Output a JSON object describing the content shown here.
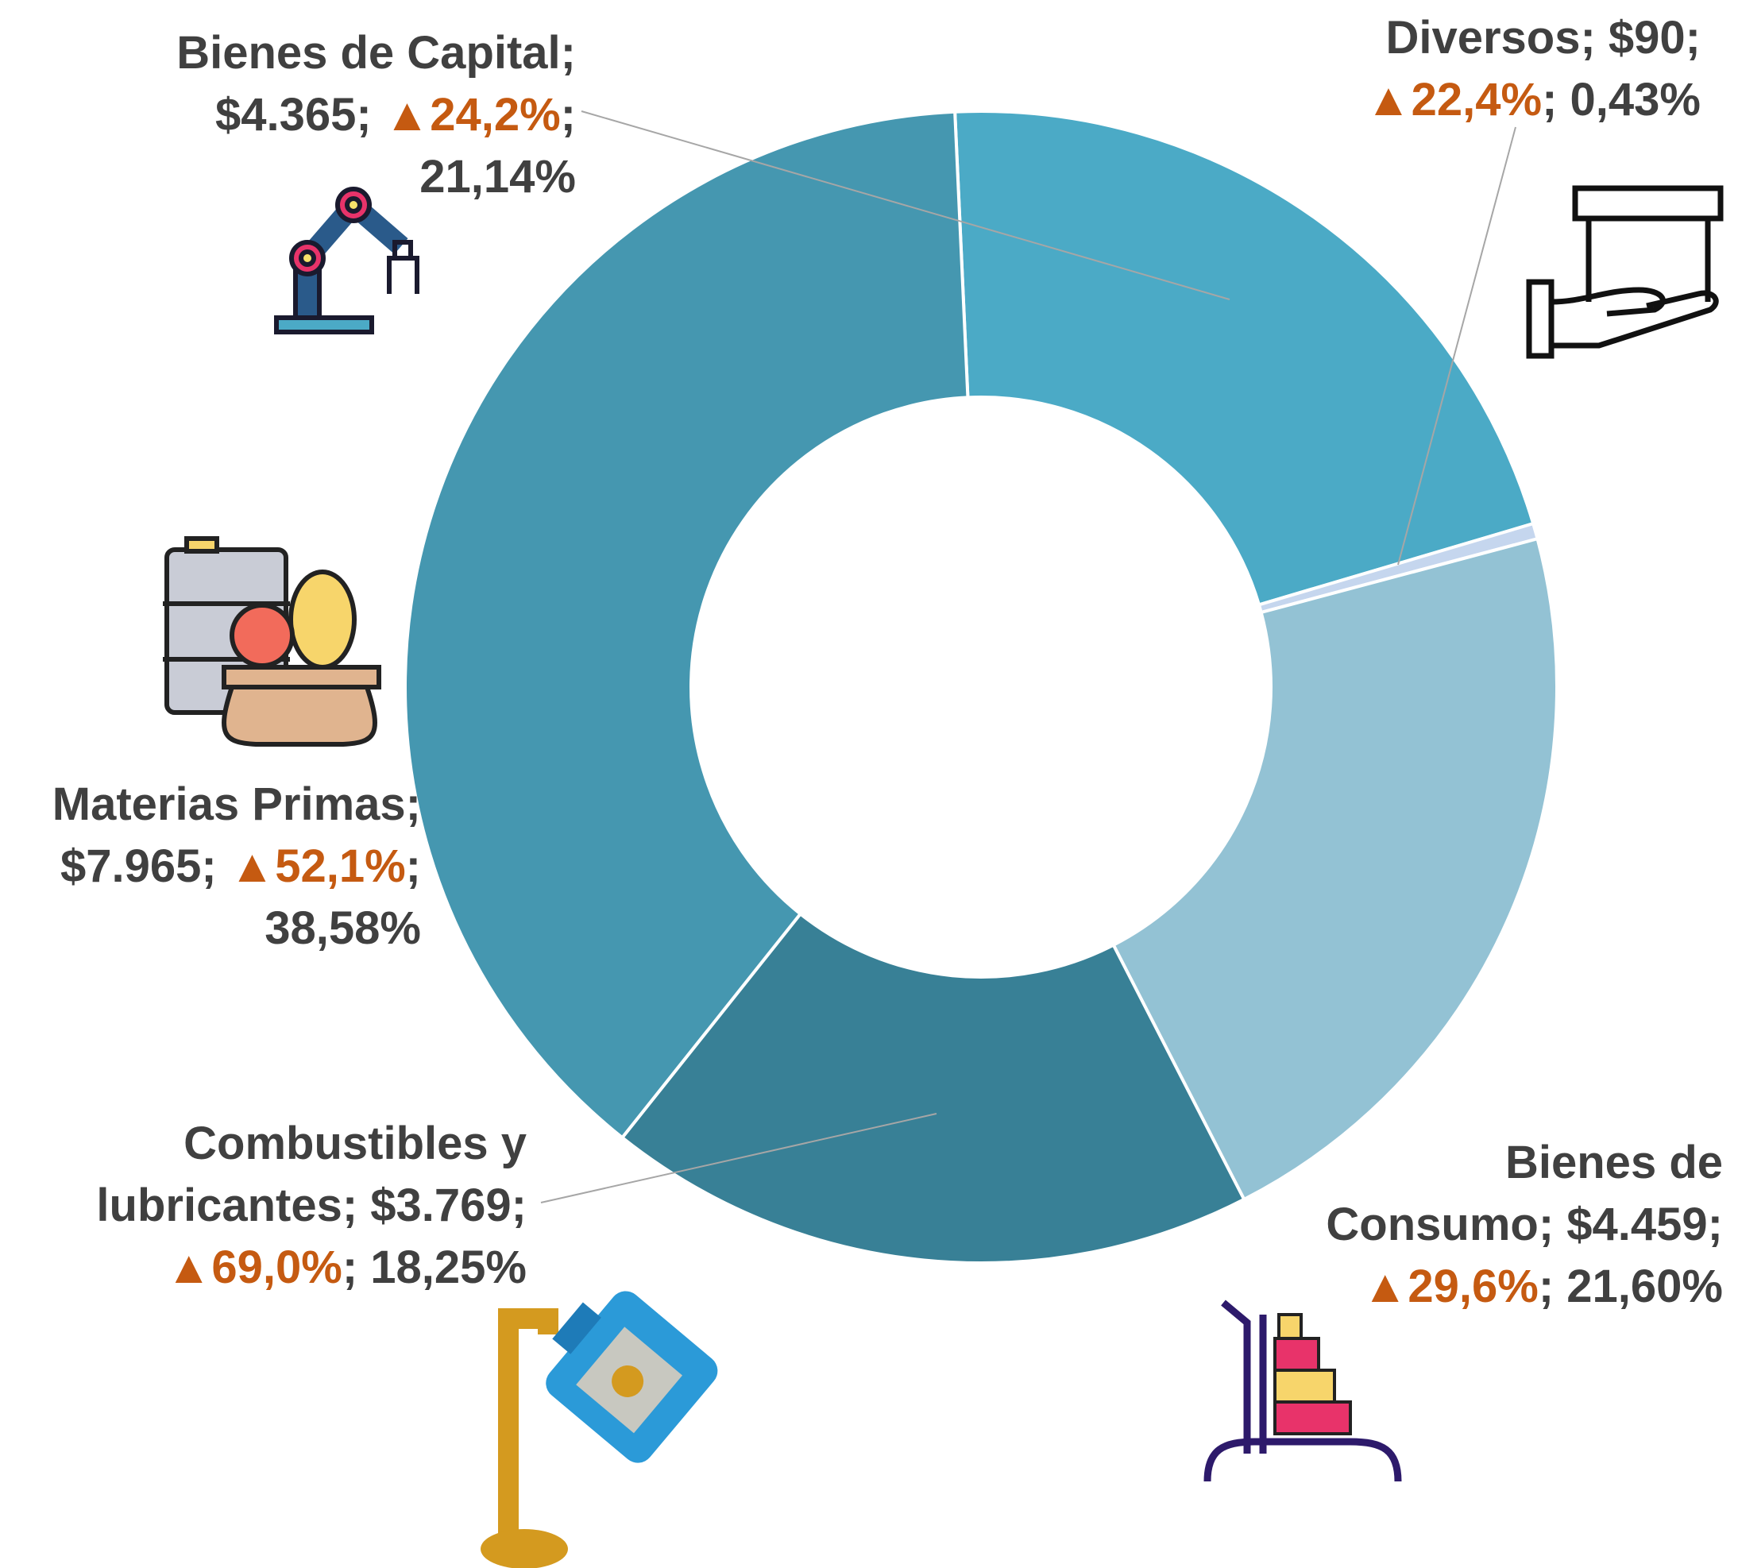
{
  "chart_data": {
    "type": "donut",
    "values": [
      4365,
      90,
      4459,
      3769,
      7965
    ],
    "colors": [
      "#4BAAC6",
      "#C5D6EE",
      "#93C2D4",
      "#388096",
      "#4597B0"
    ],
    "data_labels": [
      [
        [
          "Bienes de Capital;"
        ],
        [
          "$4.365;  ",
          "▲24,2%",
          ";"
        ],
        [
          "21,14%"
        ]
      ],
      [
        [
          "Diversos; $90;"
        ],
        [
          "▲22,4%",
          "; 0,43%"
        ]
      ],
      [
        [
          "Bienes de"
        ],
        [
          "Consumo; $4.459;"
        ],
        [
          "▲29,6%",
          "; 21,60%"
        ]
      ],
      [
        [
          "Combustibles y"
        ],
        [
          "lubricantes; $3.769;"
        ],
        [
          "▲69,0%",
          "; 18,25%"
        ]
      ],
      [
        [
          "Materias Primas;"
        ],
        [
          "$7.965;  ",
          "▲52,1%",
          ";"
        ],
        [
          "38,58%"
        ]
      ]
    ],
    "growth_color": "#C55A11"
  }
}
